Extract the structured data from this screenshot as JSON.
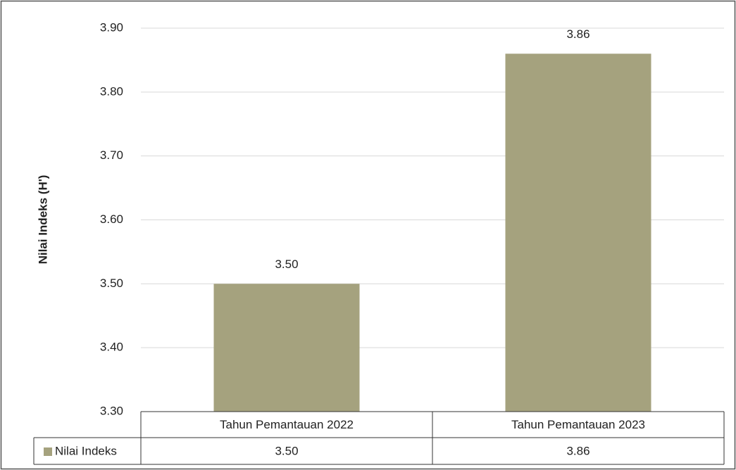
{
  "chart_data": {
    "type": "bar",
    "y_label": "Nilai Indeks (H')",
    "categories": [
      "Tahun Pemantauan 2022",
      "Tahun Pemantauan 2023"
    ],
    "series": [
      {
        "name": "Nilai Indeks",
        "color": "#a5a27e",
        "values": [
          3.5,
          3.86
        ],
        "value_labels": [
          "3.50",
          "3.86"
        ]
      }
    ],
    "ylim": [
      3.3,
      3.9
    ],
    "yticks": [
      {
        "value": 3.3,
        "label": "3.30"
      },
      {
        "value": 3.4,
        "label": "3.40"
      },
      {
        "value": 3.5,
        "label": "3.50"
      },
      {
        "value": 3.6,
        "label": "3.60"
      },
      {
        "value": 3.7,
        "label": "3.70"
      },
      {
        "value": 3.8,
        "label": "3.80"
      },
      {
        "value": 3.9,
        "label": "3.90"
      }
    ],
    "grid": true,
    "data_table": true
  }
}
